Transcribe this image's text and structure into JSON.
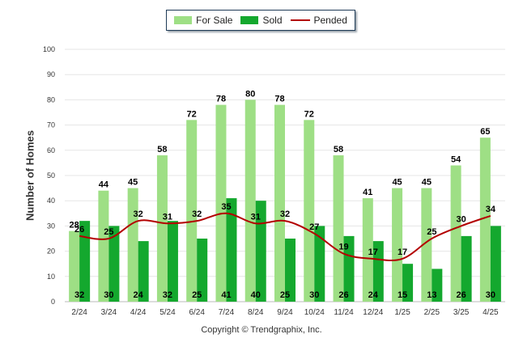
{
  "colors": {
    "for_sale": "#9edf85",
    "sold": "#14a82e",
    "pended": "#b30000"
  },
  "legend": {
    "for_sale": "For Sale",
    "sold": "Sold",
    "pended": "Pended"
  },
  "copyright": "Copyright © Trendgraphix, Inc.",
  "chart_data": {
    "type": "bar",
    "ylabel": "Number of Homes",
    "ylim": [
      0,
      100
    ],
    "yticks": [
      0,
      10,
      20,
      30,
      40,
      50,
      60,
      70,
      80,
      90,
      100
    ],
    "grid": true,
    "legend_position": "top-center",
    "categories": [
      "2/24",
      "3/24",
      "4/24",
      "5/24",
      "6/24",
      "7/24",
      "8/24",
      "9/24",
      "10/24",
      "11/24",
      "12/24",
      "1/25",
      "2/25",
      "3/25",
      "4/25"
    ],
    "series": [
      {
        "name": "For Sale",
        "type": "bar",
        "values": [
          28,
          44,
          45,
          58,
          72,
          78,
          80,
          78,
          72,
          58,
          41,
          45,
          45,
          54,
          65
        ]
      },
      {
        "name": "Sold",
        "type": "bar",
        "values": [
          32,
          30,
          24,
          32,
          25,
          41,
          40,
          25,
          30,
          26,
          24,
          15,
          13,
          26,
          30
        ]
      },
      {
        "name": "Pended",
        "type": "line",
        "values": [
          26,
          25,
          32,
          31,
          32,
          35,
          31,
          32,
          27,
          19,
          17,
          17,
          25,
          30,
          34
        ]
      }
    ]
  }
}
